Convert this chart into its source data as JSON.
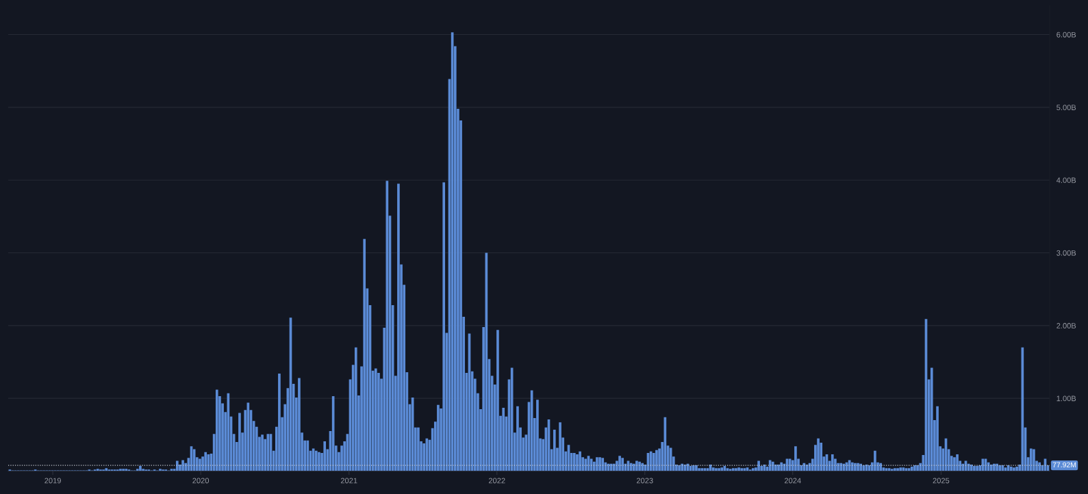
{
  "chart_data": {
    "type": "bar",
    "x": [
      "2018-09-17",
      "2018-09-24",
      "2018-10-01",
      "2018-10-08",
      "2018-10-15",
      "2018-10-22",
      "2018-10-29",
      "2018-11-05",
      "2018-11-12",
      "2018-11-19",
      "2018-11-26",
      "2018-12-03",
      "2018-12-10",
      "2018-12-17",
      "2018-12-24",
      "2018-12-31",
      "2019-01-07",
      "2019-01-14",
      "2019-01-21",
      "2019-01-28",
      "2019-02-04",
      "2019-02-11",
      "2019-02-18",
      "2019-02-25",
      "2019-03-04",
      "2019-03-11",
      "2019-03-18",
      "2019-03-25",
      "2019-04-01",
      "2019-04-08",
      "2019-04-15",
      "2019-04-22",
      "2019-04-29",
      "2019-05-06",
      "2019-05-13",
      "2019-05-20",
      "2019-05-27",
      "2019-06-03",
      "2019-06-10",
      "2019-06-17",
      "2019-06-24",
      "2019-07-01",
      "2019-07-08",
      "2019-07-15",
      "2019-07-22",
      "2019-07-29",
      "2019-08-05",
      "2019-08-12",
      "2019-08-19",
      "2019-08-26",
      "2019-09-02",
      "2019-09-09",
      "2019-09-16",
      "2019-09-23",
      "2019-09-30",
      "2019-10-07",
      "2019-10-14",
      "2019-10-21",
      "2019-10-28",
      "2019-11-04",
      "2019-11-11",
      "2019-11-18",
      "2019-11-25",
      "2019-12-02",
      "2019-12-09",
      "2019-12-16",
      "2019-12-23",
      "2019-12-30",
      "2020-01-06",
      "2020-01-13",
      "2020-01-20",
      "2020-01-27",
      "2020-02-03",
      "2020-02-10",
      "2020-02-17",
      "2020-02-24",
      "2020-03-02",
      "2020-03-09",
      "2020-03-16",
      "2020-03-23",
      "2020-03-30",
      "2020-04-06",
      "2020-04-13",
      "2020-04-20",
      "2020-04-27",
      "2020-05-04",
      "2020-05-11",
      "2020-05-18",
      "2020-05-25",
      "2020-06-01",
      "2020-06-08",
      "2020-06-15",
      "2020-06-22",
      "2020-06-29",
      "2020-07-06",
      "2020-07-13",
      "2020-07-20",
      "2020-07-27",
      "2020-08-03",
      "2020-08-10",
      "2020-08-17",
      "2020-08-24",
      "2020-08-31",
      "2020-09-07",
      "2020-09-14",
      "2020-09-21",
      "2020-09-28",
      "2020-10-05",
      "2020-10-12",
      "2020-10-19",
      "2020-10-26",
      "2020-11-02",
      "2020-11-09",
      "2020-11-16",
      "2020-11-23",
      "2020-11-30",
      "2020-12-07",
      "2020-12-14",
      "2020-12-21",
      "2020-12-28",
      "2021-01-04",
      "2021-01-11",
      "2021-01-18",
      "2021-01-25",
      "2021-02-01",
      "2021-02-08",
      "2021-02-15",
      "2021-02-22",
      "2021-03-01",
      "2021-03-08",
      "2021-03-15",
      "2021-03-22",
      "2021-03-29",
      "2021-04-05",
      "2021-04-12",
      "2021-04-19",
      "2021-04-26",
      "2021-05-03",
      "2021-05-10",
      "2021-05-17",
      "2021-05-24",
      "2021-05-31",
      "2021-06-07",
      "2021-06-14",
      "2021-06-21",
      "2021-06-28",
      "2021-07-05",
      "2021-07-12",
      "2021-07-19",
      "2021-07-26",
      "2021-08-02",
      "2021-08-09",
      "2021-08-16",
      "2021-08-23",
      "2021-08-30",
      "2021-09-06",
      "2021-09-13",
      "2021-09-20",
      "2021-09-27",
      "2021-10-04",
      "2021-10-11",
      "2021-10-18",
      "2021-10-25",
      "2021-11-01",
      "2021-11-08",
      "2021-11-15",
      "2021-11-22",
      "2021-11-29",
      "2021-12-06",
      "2021-12-13",
      "2021-12-20",
      "2021-12-27",
      "2022-01-03",
      "2022-01-10",
      "2022-01-17",
      "2022-01-24",
      "2022-01-31",
      "2022-02-07",
      "2022-02-14",
      "2022-02-21",
      "2022-02-28",
      "2022-03-07",
      "2022-03-14",
      "2022-03-21",
      "2022-03-28",
      "2022-04-04",
      "2022-04-11",
      "2022-04-18",
      "2022-04-25",
      "2022-05-02",
      "2022-05-09",
      "2022-05-16",
      "2022-05-23",
      "2022-05-30",
      "2022-06-06",
      "2022-06-13",
      "2022-06-20",
      "2022-06-27",
      "2022-07-04",
      "2022-07-11",
      "2022-07-18",
      "2022-07-25",
      "2022-08-01",
      "2022-08-08",
      "2022-08-15",
      "2022-08-22",
      "2022-08-29",
      "2022-09-05",
      "2022-09-12",
      "2022-09-19",
      "2022-09-26",
      "2022-10-03",
      "2022-10-10",
      "2022-10-17",
      "2022-10-24",
      "2022-10-31",
      "2022-11-07",
      "2022-11-14",
      "2022-11-21",
      "2022-11-28",
      "2022-12-05",
      "2022-12-12",
      "2022-12-19",
      "2022-12-26",
      "2023-01-02",
      "2023-01-09",
      "2023-01-16",
      "2023-01-23",
      "2023-01-30",
      "2023-02-06",
      "2023-02-13",
      "2023-02-20",
      "2023-02-27",
      "2023-03-06",
      "2023-03-13",
      "2023-03-20",
      "2023-03-27",
      "2023-04-03",
      "2023-04-10",
      "2023-04-17",
      "2023-04-24",
      "2023-05-01",
      "2023-05-08",
      "2023-05-15",
      "2023-05-22",
      "2023-05-29",
      "2023-06-05",
      "2023-06-12",
      "2023-06-19",
      "2023-06-26",
      "2023-07-03",
      "2023-07-10",
      "2023-07-17",
      "2023-07-24",
      "2023-07-31",
      "2023-08-07",
      "2023-08-14",
      "2023-08-21",
      "2023-08-28",
      "2023-09-04",
      "2023-09-11",
      "2023-09-18",
      "2023-09-25",
      "2023-10-02",
      "2023-10-09",
      "2023-10-16",
      "2023-10-23",
      "2023-10-30",
      "2023-11-06",
      "2023-11-13",
      "2023-11-20",
      "2023-11-27",
      "2023-12-04",
      "2023-12-11",
      "2023-12-18",
      "2023-12-25",
      "2024-01-01",
      "2024-01-08",
      "2024-01-15",
      "2024-01-22",
      "2024-01-29",
      "2024-02-05",
      "2024-02-12",
      "2024-02-19",
      "2024-02-26",
      "2024-03-04",
      "2024-03-11",
      "2024-03-18",
      "2024-03-25",
      "2024-04-01",
      "2024-04-08",
      "2024-04-15",
      "2024-04-22",
      "2024-04-29",
      "2024-05-06",
      "2024-05-13",
      "2024-05-20",
      "2024-05-27",
      "2024-06-03",
      "2024-06-10",
      "2024-06-17",
      "2024-06-24",
      "2024-07-01",
      "2024-07-08",
      "2024-07-15",
      "2024-07-22",
      "2024-07-29",
      "2024-08-05",
      "2024-08-12",
      "2024-08-19",
      "2024-08-26",
      "2024-09-02",
      "2024-09-09",
      "2024-09-16",
      "2024-09-23",
      "2024-09-30",
      "2024-10-07",
      "2024-10-14",
      "2024-10-21",
      "2024-10-28",
      "2024-11-04",
      "2024-11-11",
      "2024-11-18",
      "2024-11-25",
      "2024-12-02",
      "2024-12-09",
      "2024-12-16",
      "2024-12-23",
      "2024-12-30",
      "2025-01-06",
      "2025-01-13",
      "2025-01-20",
      "2025-01-27",
      "2025-02-03",
      "2025-02-10",
      "2025-02-17",
      "2025-02-24",
      "2025-03-03",
      "2025-03-10",
      "2025-03-17",
      "2025-03-24",
      "2025-03-31",
      "2025-04-07",
      "2025-04-14",
      "2025-04-21",
      "2025-04-28",
      "2025-05-05",
      "2025-05-12",
      "2025-05-19",
      "2025-05-26",
      "2025-06-02",
      "2025-06-09",
      "2025-06-16",
      "2025-06-23",
      "2025-06-30",
      "2025-07-07",
      "2025-07-14",
      "2025-07-21",
      "2025-07-28",
      "2025-08-04",
      "2025-08-11",
      "2025-08-18",
      "2025-08-25",
      "2025-09-01",
      "2025-09-08",
      "2025-09-15",
      "2025-09-22"
    ],
    "series": [
      {
        "color": "#5b8bd6",
        "values": [
          0.02,
          0.01,
          0.01,
          0.01,
          0.01,
          0.01,
          0.01,
          0.01,
          0.01,
          0.02,
          0.01,
          0.01,
          0.01,
          0.01,
          0.01,
          0.01,
          0.01,
          0.01,
          0.01,
          0.01,
          0.01,
          0.01,
          0.01,
          0.01,
          0.01,
          0.01,
          0.01,
          0.01,
          0.02,
          0.01,
          0.02,
          0.03,
          0.02,
          0.02,
          0.04,
          0.02,
          0.02,
          0.02,
          0.02,
          0.03,
          0.03,
          0.03,
          0.02,
          0.01,
          0.01,
          0.03,
          0.07,
          0.03,
          0.02,
          0.02,
          0.01,
          0.02,
          0.01,
          0.03,
          0.02,
          0.02,
          0.01,
          0.03,
          0.03,
          0.14,
          0.09,
          0.15,
          0.11,
          0.18,
          0.34,
          0.3,
          0.19,
          0.17,
          0.2,
          0.26,
          0.23,
          0.24,
          0.51,
          1.12,
          1.03,
          0.93,
          0.81,
          1.07,
          0.75,
          0.51,
          0.4,
          0.8,
          0.53,
          0.84,
          0.94,
          0.84,
          0.69,
          0.61,
          0.47,
          0.5,
          0.44,
          0.51,
          0.51,
          0.28,
          0.61,
          1.34,
          0.74,
          0.92,
          1.14,
          2.11,
          1.2,
          1.01,
          1.28,
          0.53,
          0.42,
          0.42,
          0.28,
          0.31,
          0.28,
          0.26,
          0.25,
          0.41,
          0.3,
          0.55,
          1.03,
          0.35,
          0.26,
          0.35,
          0.41,
          0.51,
          1.26,
          1.46,
          1.7,
          1.04,
          1.44,
          3.19,
          2.51,
          2.28,
          1.38,
          1.41,
          1.35,
          1.27,
          1.97,
          3.99,
          3.51,
          2.28,
          1.31,
          3.95,
          2.84,
          2.56,
          1.36,
          0.92,
          1.01,
          0.6,
          0.6,
          0.41,
          0.38,
          0.45,
          0.43,
          0.59,
          0.68,
          0.91,
          0.86,
          3.97,
          1.9,
          5.39,
          6.03,
          5.84,
          4.98,
          4.82,
          2.12,
          1.35,
          1.89,
          1.37,
          1.27,
          1.07,
          0.85,
          1.98,
          3.0,
          1.54,
          1.31,
          1.19,
          1.94,
          0.76,
          0.87,
          0.75,
          1.26,
          1.42,
          0.53,
          0.89,
          0.6,
          0.46,
          0.5,
          0.95,
          1.11,
          0.73,
          0.98,
          0.45,
          0.44,
          0.6,
          0.71,
          0.3,
          0.57,
          0.32,
          0.67,
          0.46,
          0.27,
          0.36,
          0.25,
          0.25,
          0.23,
          0.27,
          0.19,
          0.17,
          0.21,
          0.17,
          0.13,
          0.19,
          0.19,
          0.18,
          0.12,
          0.1,
          0.1,
          0.1,
          0.14,
          0.21,
          0.18,
          0.1,
          0.14,
          0.11,
          0.1,
          0.14,
          0.13,
          0.11,
          0.09,
          0.25,
          0.27,
          0.25,
          0.29,
          0.31,
          0.4,
          0.74,
          0.35,
          0.32,
          0.2,
          0.09,
          0.08,
          0.1,
          0.09,
          0.1,
          0.07,
          0.08,
          0.08,
          0.04,
          0.04,
          0.04,
          0.04,
          0.09,
          0.05,
          0.04,
          0.04,
          0.05,
          0.07,
          0.04,
          0.03,
          0.04,
          0.04,
          0.05,
          0.04,
          0.04,
          0.05,
          0.02,
          0.04,
          0.05,
          0.14,
          0.07,
          0.09,
          0.06,
          0.15,
          0.13,
          0.09,
          0.09,
          0.12,
          0.1,
          0.17,
          0.17,
          0.15,
          0.34,
          0.17,
          0.08,
          0.11,
          0.09,
          0.11,
          0.17,
          0.36,
          0.45,
          0.39,
          0.2,
          0.23,
          0.14,
          0.23,
          0.17,
          0.11,
          0.11,
          0.1,
          0.12,
          0.15,
          0.12,
          0.11,
          0.11,
          0.1,
          0.08,
          0.09,
          0.08,
          0.12,
          0.28,
          0.12,
          0.11,
          0.05,
          0.04,
          0.04,
          0.03,
          0.04,
          0.04,
          0.05,
          0.05,
          0.04,
          0.04,
          0.06,
          0.08,
          0.08,
          0.11,
          0.22,
          2.09,
          1.26,
          1.42,
          0.7,
          0.89,
          0.34,
          0.31,
          0.45,
          0.3,
          0.21,
          0.19,
          0.23,
          0.14,
          0.1,
          0.14,
          0.1,
          0.09,
          0.07,
          0.07,
          0.08,
          0.17,
          0.17,
          0.12,
          0.09,
          0.1,
          0.1,
          0.08,
          0.08,
          0.05,
          0.08,
          0.06,
          0.05,
          0.06,
          0.09,
          1.7,
          0.6,
          0.19,
          0.31,
          0.3,
          0.14,
          0.12,
          0.08,
          0.17,
          0.08
        ]
      }
    ],
    "xlim": [
      "2018-09-13",
      "2025-09-26"
    ],
    "ylim": [
      0,
      6.4
    ],
    "xticks": [
      {
        "value": "2019-01-01",
        "label": "2019"
      },
      {
        "value": "2020-01-01",
        "label": "2020"
      },
      {
        "value": "2021-01-01",
        "label": "2021"
      },
      {
        "value": "2022-01-01",
        "label": "2022"
      },
      {
        "value": "2023-01-01",
        "label": "2023"
      },
      {
        "value": "2024-01-01",
        "label": "2024"
      },
      {
        "value": "2025-01-01",
        "label": "2025"
      }
    ],
    "yticks": [
      {
        "value": 0,
        "label": null
      },
      {
        "value": 1,
        "label": "1.00B"
      },
      {
        "value": 2,
        "label": "2.00B"
      },
      {
        "value": 3,
        "label": "3.00B"
      },
      {
        "value": 4,
        "label": "4.00B"
      },
      {
        "value": 5,
        "label": "5.00B"
      },
      {
        "value": 6,
        "label": "6.00B"
      }
    ],
    "grid": "y",
    "ref_lines": [
      {
        "axis": "y",
        "value": 0.07792,
        "label": "77.92M",
        "color": "#c3c7cf",
        "line_style": "dotted"
      }
    ]
  }
}
